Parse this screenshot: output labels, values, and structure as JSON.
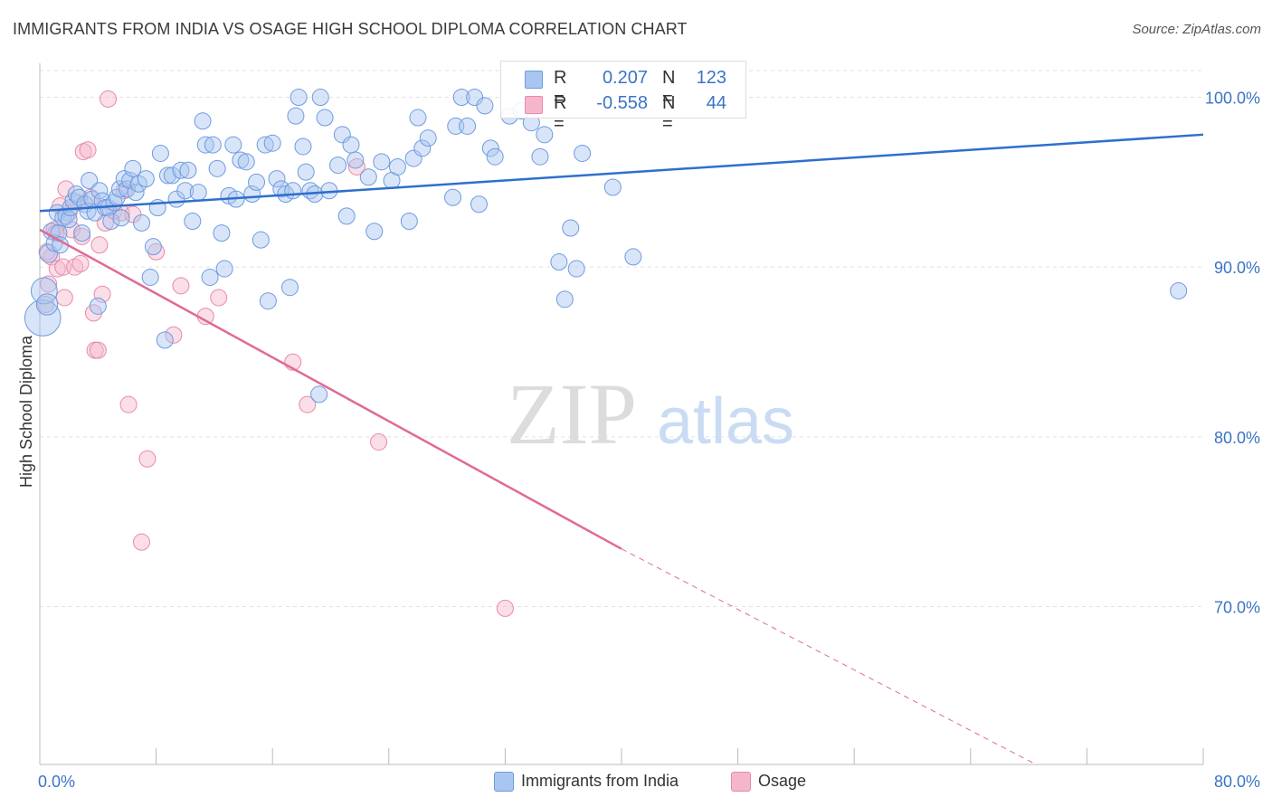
{
  "header": {
    "title": "IMMIGRANTS FROM INDIA VS OSAGE HIGH SCHOOL DIPLOMA CORRELATION CHART",
    "source": "Source: ZipAtlas.com"
  },
  "watermark": {
    "zip": "ZIP",
    "atlas": "atlas"
  },
  "legend_top": {
    "rows": [
      {
        "r_label": "R =",
        "r_value": "0.207",
        "n_label": "N =",
        "n_value": "123"
      },
      {
        "r_label": "R =",
        "r_value": "-0.558",
        "n_label": "N =",
        "n_value": "44"
      }
    ]
  },
  "legend_bottom": {
    "items": [
      {
        "label": "Immigrants from India"
      },
      {
        "label": "Osage"
      }
    ]
  },
  "colors": {
    "blue_fill": "#a9c6f0",
    "blue_stroke": "#6e9be0",
    "blue_line": "#2f6fcc",
    "pink_fill": "#f5b6cb",
    "pink_stroke": "#e88aa8",
    "pink_line": "#e06a93",
    "tick_label": "#3b73c7",
    "grid": "#e3e3e3"
  },
  "chart_data": {
    "type": "scatter",
    "title": "IMMIGRANTS FROM INDIA VS OSAGE HIGH SCHOOL DIPLOMA CORRELATION CHART",
    "xlabel": "",
    "ylabel": "High School Diploma",
    "xlim": [
      0,
      80
    ],
    "ylim": [
      60.7,
      102
    ],
    "x_tick_labels": [
      "0.0%",
      "80.0%"
    ],
    "y_ticks": [
      70,
      80,
      90,
      100
    ],
    "y_tick_labels": [
      "70.0%",
      "80.0%",
      "90.0%",
      "100.0%"
    ],
    "grid": true,
    "legend_position": "top-center",
    "series": [
      {
        "name": "Immigrants from India",
        "r": 0.207,
        "n": 123,
        "trend": {
          "x0": 0,
          "y0": 93.3,
          "x1": 80,
          "y1": 97.8
        },
        "points": [
          [
            0.2,
            87.0,
            2.2
          ],
          [
            0.3,
            88.6,
            1.6
          ],
          [
            0.5,
            87.8,
            1.3
          ],
          [
            0.6,
            90.8,
            1.1
          ],
          [
            0.8,
            92.1,
            1.0
          ],
          [
            1.0,
            91.4,
            1.0
          ],
          [
            1.2,
            93.2,
            1.0
          ],
          [
            1.3,
            92.0,
            1.0
          ],
          [
            1.4,
            91.3,
            1.0
          ],
          [
            1.6,
            92.9,
            1.0
          ],
          [
            1.8,
            93.0,
            1.0
          ],
          [
            2.0,
            92.8,
            1.0
          ],
          [
            2.1,
            93.5,
            1.0
          ],
          [
            2.3,
            93.9,
            1.0
          ],
          [
            2.5,
            94.3,
            1.0
          ],
          [
            2.7,
            94.1,
            1.0
          ],
          [
            2.9,
            92.0,
            1.0
          ],
          [
            3.1,
            93.7,
            1.0
          ],
          [
            3.3,
            93.3,
            1.0
          ],
          [
            3.4,
            95.1,
            1.0
          ],
          [
            3.6,
            94.0,
            1.0
          ],
          [
            3.8,
            93.2,
            1.0
          ],
          [
            4.0,
            87.7,
            1.0
          ],
          [
            4.1,
            94.5,
            1.0
          ],
          [
            4.3,
            93.9,
            1.0
          ],
          [
            4.5,
            93.5,
            1.0
          ],
          [
            4.7,
            93.5,
            1.0
          ],
          [
            4.9,
            92.7,
            1.0
          ],
          [
            5.1,
            93.8,
            1.0
          ],
          [
            5.3,
            94.1,
            1.0
          ],
          [
            5.5,
            94.6,
            1.0
          ],
          [
            5.6,
            92.9,
            1.0
          ],
          [
            5.8,
            95.2,
            1.0
          ],
          [
            6.0,
            94.6,
            1.0
          ],
          [
            6.2,
            95.1,
            1.0
          ],
          [
            6.4,
            95.8,
            1.0
          ],
          [
            6.6,
            94.4,
            1.0
          ],
          [
            6.8,
            94.9,
            1.0
          ],
          [
            7.0,
            92.6,
            1.0
          ],
          [
            7.3,
            95.2,
            1.0
          ],
          [
            7.6,
            89.4,
            1.0
          ],
          [
            7.8,
            91.2,
            1.0
          ],
          [
            8.1,
            93.5,
            1.0
          ],
          [
            8.3,
            96.7,
            1.0
          ],
          [
            8.6,
            85.7,
            1.0
          ],
          [
            8.8,
            95.4,
            1.0
          ],
          [
            9.1,
            95.4,
            1.0
          ],
          [
            9.4,
            94.0,
            1.0
          ],
          [
            9.7,
            95.7,
            1.0
          ],
          [
            10.0,
            94.5,
            1.0
          ],
          [
            10.2,
            95.7,
            1.0
          ],
          [
            10.5,
            92.7,
            1.0
          ],
          [
            10.9,
            94.4,
            1.0
          ],
          [
            11.2,
            98.6,
            1.0
          ],
          [
            11.4,
            97.2,
            1.0
          ],
          [
            11.7,
            89.4,
            1.0
          ],
          [
            11.9,
            97.2,
            1.0
          ],
          [
            12.2,
            95.8,
            1.0
          ],
          [
            12.5,
            92.0,
            1.0
          ],
          [
            12.7,
            89.9,
            1.0
          ],
          [
            13.0,
            94.2,
            1.0
          ],
          [
            13.3,
            97.2,
            1.0
          ],
          [
            13.5,
            94.0,
            1.0
          ],
          [
            13.8,
            96.3,
            1.0
          ],
          [
            14.2,
            96.2,
            1.0
          ],
          [
            14.6,
            94.3,
            1.0
          ],
          [
            14.9,
            95.0,
            1.0
          ],
          [
            15.2,
            91.6,
            1.0
          ],
          [
            15.5,
            97.2,
            1.0
          ],
          [
            15.7,
            88.0,
            1.0
          ],
          [
            16.0,
            97.3,
            1.0
          ],
          [
            16.3,
            95.2,
            1.0
          ],
          [
            16.6,
            94.6,
            1.0
          ],
          [
            16.9,
            94.3,
            1.0
          ],
          [
            17.2,
            88.8,
            1.0
          ],
          [
            17.6,
            98.9,
            1.0
          ],
          [
            17.8,
            100.0,
            1.0
          ],
          [
            18.1,
            97.1,
            1.0
          ],
          [
            18.3,
            95.6,
            1.0
          ],
          [
            18.6,
            94.5,
            1.0
          ],
          [
            18.9,
            94.3,
            1.0
          ],
          [
            19.2,
            82.5,
            1.0
          ],
          [
            19.3,
            100.0,
            1.0
          ],
          [
            19.6,
            98.8,
            1.0
          ],
          [
            19.9,
            94.5,
            1.0
          ],
          [
            20.5,
            96.0,
            1.0
          ],
          [
            20.8,
            97.8,
            1.0
          ],
          [
            21.1,
            93.0,
            1.0
          ],
          [
            21.4,
            97.2,
            1.0
          ],
          [
            21.7,
            96.3,
            1.0
          ],
          [
            22.6,
            95.3,
            1.0
          ],
          [
            23.0,
            92.1,
            1.0
          ],
          [
            23.5,
            96.2,
            1.0
          ],
          [
            24.2,
            95.1,
            1.0
          ],
          [
            24.6,
            95.9,
            1.0
          ],
          [
            25.4,
            92.7,
            1.0
          ],
          [
            25.7,
            96.4,
            1.0
          ],
          [
            26.0,
            98.8,
            1.0
          ],
          [
            26.3,
            97.0,
            1.0
          ],
          [
            26.7,
            97.6,
            1.0
          ],
          [
            28.4,
            94.1,
            1.0
          ],
          [
            28.6,
            98.3,
            1.0
          ],
          [
            29.0,
            100.0,
            1.0
          ],
          [
            29.4,
            98.3,
            1.0
          ],
          [
            29.9,
            100.0,
            1.0
          ],
          [
            30.2,
            93.7,
            1.0
          ],
          [
            30.6,
            99.5,
            1.0
          ],
          [
            31.0,
            97.0,
            1.0
          ],
          [
            31.3,
            96.5,
            1.0
          ],
          [
            32.3,
            98.9,
            1.0
          ],
          [
            33.1,
            99.2,
            1.0
          ],
          [
            33.8,
            98.5,
            1.0
          ],
          [
            34.4,
            96.5,
            1.0
          ],
          [
            34.7,
            97.8,
            1.0
          ],
          [
            35.7,
            90.3,
            1.0
          ],
          [
            36.1,
            88.1,
            1.0
          ],
          [
            36.5,
            92.3,
            1.0
          ],
          [
            36.9,
            89.9,
            1.0
          ],
          [
            37.3,
            96.7,
            1.0
          ],
          [
            39.4,
            94.7,
            1.0
          ],
          [
            40.8,
            90.6,
            1.0
          ],
          [
            78.3,
            88.6,
            1.0
          ],
          [
            17.4,
            94.5,
            1.0
          ]
        ]
      },
      {
        "name": "Osage",
        "r": -0.558,
        "n": 44,
        "trend": {
          "x0": 0,
          "y0": 92.2,
          "x1": 40,
          "y1": 73.4,
          "dash_to_x": 68.5,
          "dash_to_y": 60.7
        },
        "points": [
          [
            0.4,
            87.8,
            1.0
          ],
          [
            0.6,
            89.0,
            1.0
          ],
          [
            0.8,
            90.6,
            1.0
          ],
          [
            1.0,
            92.2,
            1.0
          ],
          [
            1.2,
            89.9,
            1.0
          ],
          [
            1.4,
            93.6,
            1.0
          ],
          [
            1.6,
            90.0,
            1.0
          ],
          [
            1.8,
            94.6,
            1.0
          ],
          [
            2.0,
            93.2,
            1.0
          ],
          [
            2.2,
            92.2,
            1.0
          ],
          [
            2.4,
            90.0,
            1.0
          ],
          [
            2.6,
            93.8,
            1.0
          ],
          [
            2.8,
            90.2,
            1.0
          ],
          [
            3.0,
            96.8,
            1.0
          ],
          [
            3.3,
            96.9,
            1.0
          ],
          [
            3.5,
            94.1,
            1.0
          ],
          [
            3.7,
            87.3,
            1.0
          ],
          [
            3.8,
            85.1,
            1.0
          ],
          [
            4.0,
            85.1,
            1.0
          ],
          [
            4.1,
            91.3,
            1.0
          ],
          [
            4.3,
            88.4,
            1.0
          ],
          [
            4.5,
            92.6,
            1.0
          ],
          [
            4.7,
            99.9,
            1.0
          ],
          [
            5.1,
            93.3,
            1.0
          ],
          [
            5.6,
            93.2,
            1.0
          ],
          [
            5.8,
            94.5,
            1.0
          ],
          [
            6.1,
            81.9,
            1.0
          ],
          [
            6.4,
            93.1,
            1.0
          ],
          [
            7.0,
            73.8,
            1.0
          ],
          [
            7.4,
            78.7,
            1.0
          ],
          [
            8.0,
            90.9,
            1.0
          ],
          [
            9.2,
            86.0,
            1.0
          ],
          [
            9.7,
            88.9,
            1.0
          ],
          [
            11.4,
            87.1,
            1.0
          ],
          [
            12.3,
            88.2,
            1.0
          ],
          [
            17.4,
            84.4,
            1.0
          ],
          [
            18.4,
            81.9,
            1.0
          ],
          [
            21.8,
            95.9,
            1.0
          ],
          [
            23.3,
            79.7,
            1.0
          ],
          [
            32.0,
            69.9,
            1.0
          ],
          [
            1.1,
            92.0,
            1.0
          ],
          [
            2.9,
            91.8,
            1.0
          ],
          [
            0.5,
            90.9,
            1.0
          ],
          [
            1.7,
            88.2,
            1.0
          ]
        ]
      }
    ]
  }
}
